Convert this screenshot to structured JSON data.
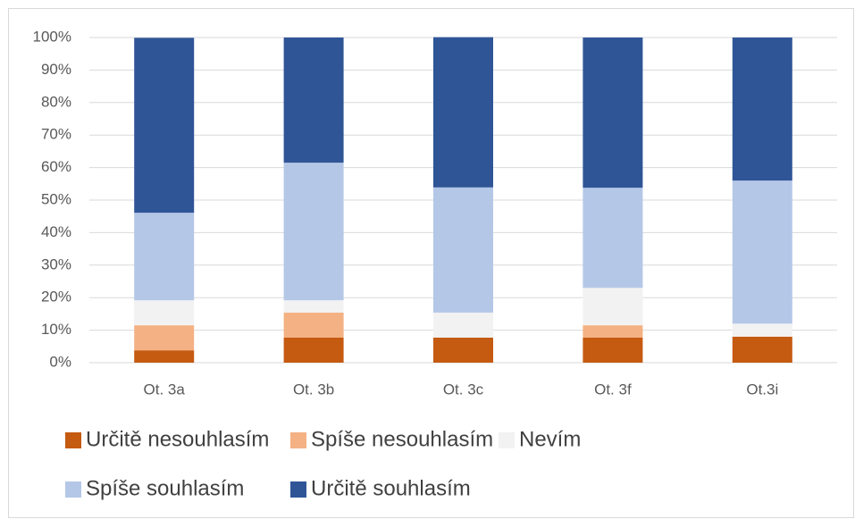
{
  "chart_data": {
    "type": "stacked_bar",
    "categories": [
      "Ot. 3a",
      "Ot. 3b",
      "Ot. 3c",
      "Ot. 3f",
      "Ot.3i"
    ],
    "series": [
      {
        "name": "Určitě nesouhlasím",
        "color": "#c55a11",
        "values": [
          3.8,
          7.7,
          7.7,
          7.7,
          8
        ]
      },
      {
        "name": "Spíše nesouhlasím",
        "color": "#f4b183",
        "values": [
          7.7,
          7.7,
          0,
          3.8,
          0
        ]
      },
      {
        "name": "Nevím",
        "color": "#f2f2f2",
        "values": [
          7.7,
          3.8,
          7.7,
          11.5,
          4
        ]
      },
      {
        "name": "Spíše souhlasím",
        "color": "#b4c7e7",
        "values": [
          26.9,
          42.3,
          38.5,
          30.8,
          44
        ]
      },
      {
        "name": "Určitě souhlasím",
        "color": "#2f5597",
        "values": [
          53.8,
          38.5,
          46.2,
          46.2,
          44
        ]
      }
    ],
    "ylim": [
      0,
      100
    ],
    "yticks": [
      {
        "value": 0,
        "label": "0%"
      },
      {
        "value": 10,
        "label": "10%"
      },
      {
        "value": 20,
        "label": "20%"
      },
      {
        "value": 30,
        "label": "30%"
      },
      {
        "value": 40,
        "label": "40%"
      },
      {
        "value": 50,
        "label": "50%"
      },
      {
        "value": 60,
        "label": "60%"
      },
      {
        "value": 70,
        "label": "70%"
      },
      {
        "value": 80,
        "label": "80%"
      },
      {
        "value": 90,
        "label": "90%"
      },
      {
        "value": 100,
        "label": "100%"
      }
    ],
    "grid": true,
    "legend": "bottom"
  }
}
